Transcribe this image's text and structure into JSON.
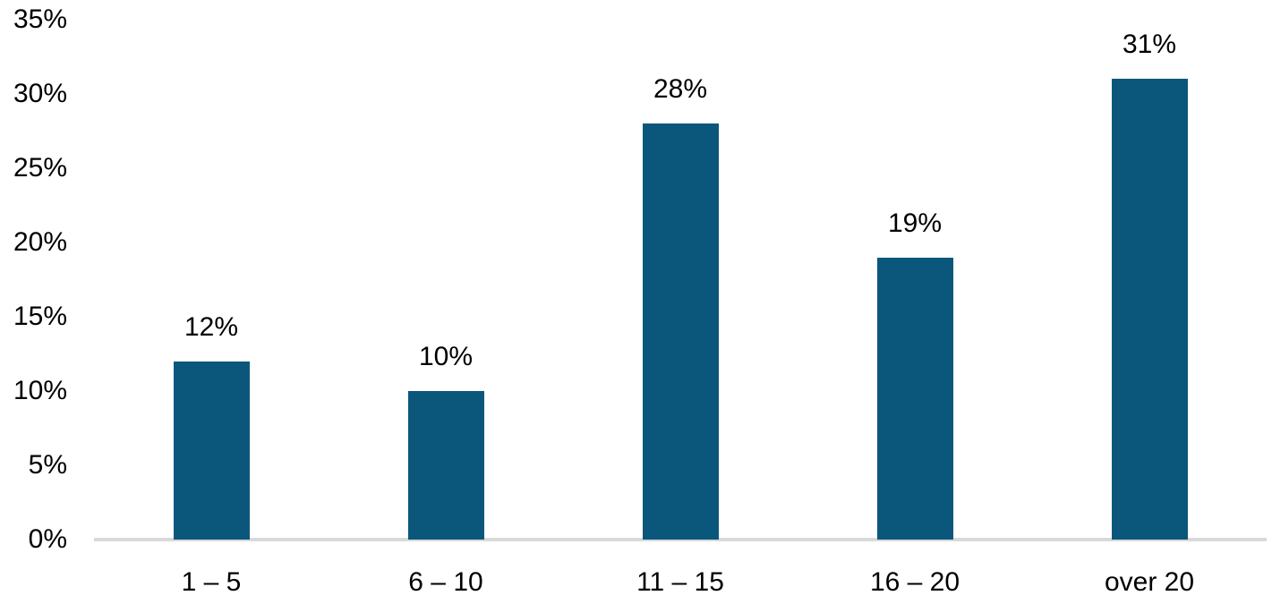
{
  "chart_data": {
    "type": "bar",
    "title": "",
    "categories": [
      "1 – 5",
      "6 – 10",
      "11 – 15",
      "16 – 20",
      "over 20"
    ],
    "values": [
      12,
      10,
      28,
      19,
      31
    ],
    "data_labels": [
      "12%",
      "10%",
      "28%",
      "19%",
      "31%"
    ],
    "y_ticks": [
      "0%",
      "5%",
      "10%",
      "15%",
      "20%",
      "25%",
      "30%",
      "35%"
    ],
    "ylim": [
      0,
      35
    ],
    "y_tick_step": 5,
    "grid": false,
    "legend": false,
    "xlabel": "",
    "ylabel": "",
    "colors": {
      "bar": "#0B577C",
      "axis_line": "#D9D9D9",
      "text": "#000000",
      "background": "#FFFFFF"
    }
  }
}
